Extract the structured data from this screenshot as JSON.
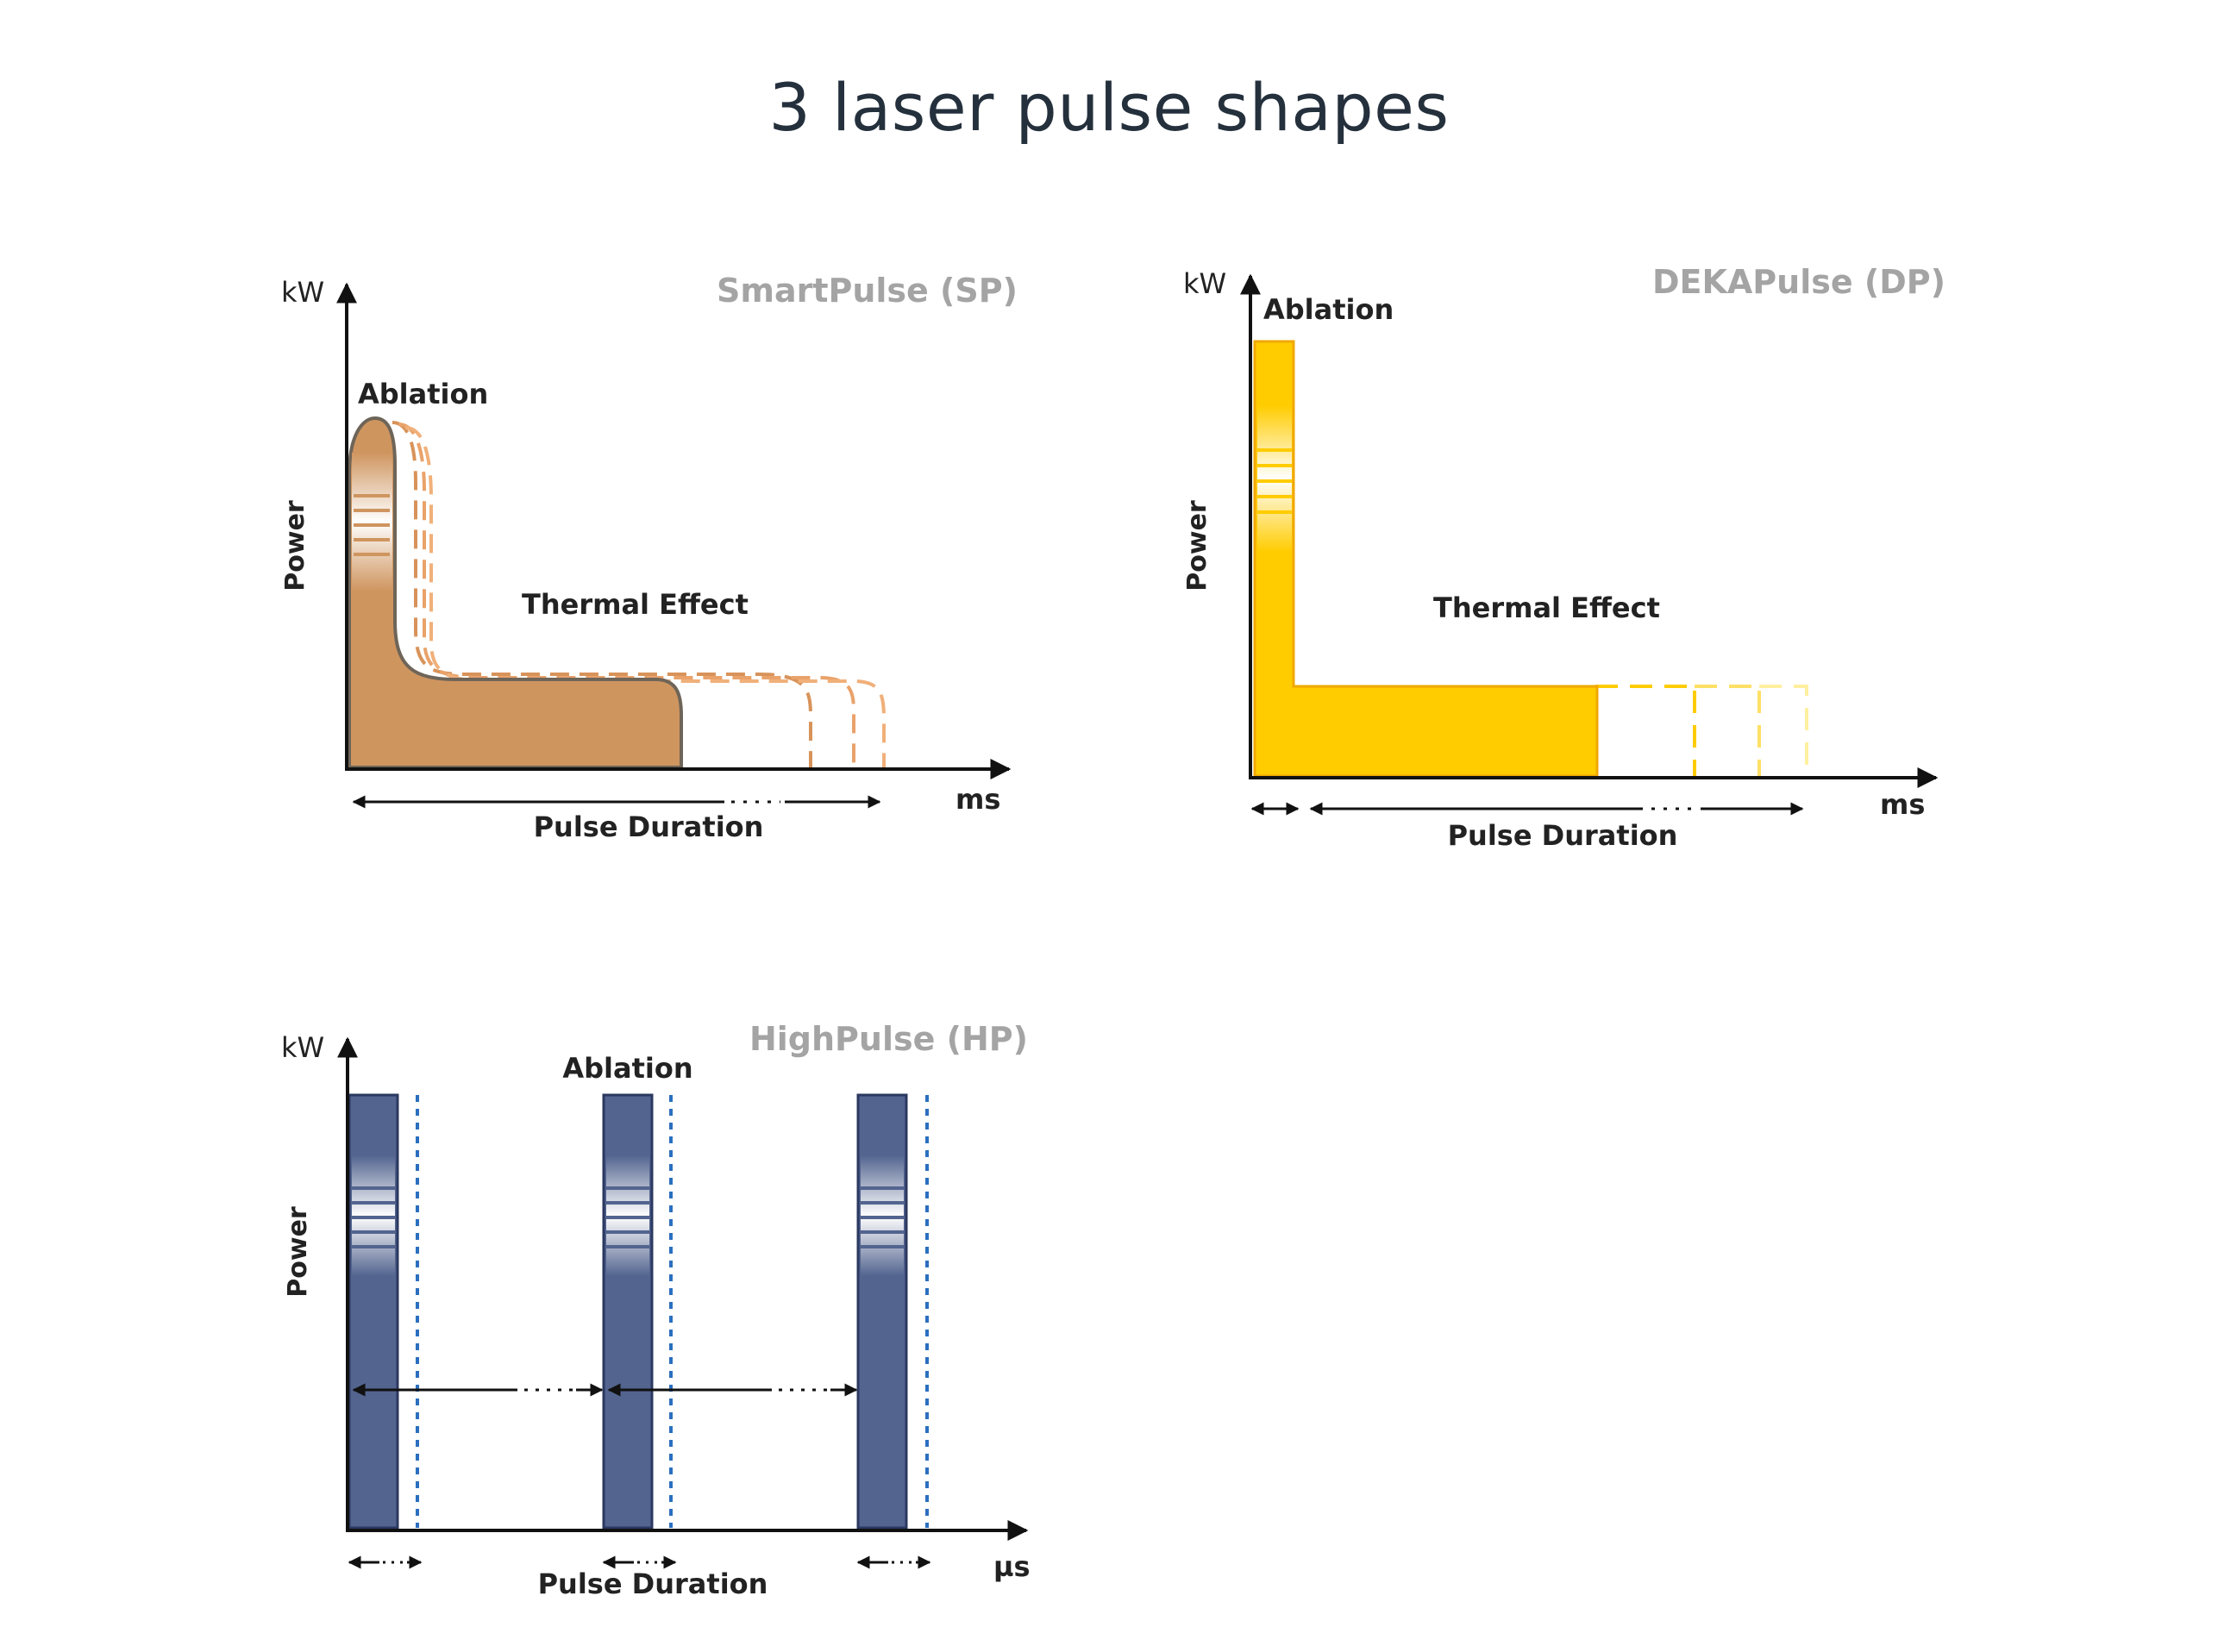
{
  "page": {
    "title": "3 laser pulse shapes"
  },
  "colors": {
    "smartpulse_fill": "#cf955f",
    "smartpulse_stroke": "#6e6558",
    "dekapulse_fill": "#ffcc00",
    "dekapulse_stroke": "#f0a800",
    "highpulse_fill": "#53648f",
    "highpulse_stroke": "#2b3860",
    "highpulse_dotted": "#2b6fbf",
    "axis": "#111111",
    "diagram_title": "#a4a4a4"
  },
  "diagrams": {
    "smartpulse": {
      "title": "SmartPulse (SP)",
      "y_unit": "kW",
      "y_label": "Power",
      "x_unit": "ms",
      "peak_label": "Ablation",
      "tail_label": "Thermal Effect",
      "duration_label": "Pulse Duration"
    },
    "dekapulse": {
      "title": "DEKAPulse (DP)",
      "y_unit": "kW",
      "y_label": "Power",
      "x_unit": "ms",
      "peak_label": "Ablation",
      "tail_label": "Thermal Effect",
      "duration_label": "Pulse Duration"
    },
    "highpulse": {
      "title": "HighPulse (HP)",
      "y_unit": "kW",
      "y_label": "Power",
      "x_unit": "µs",
      "peak_label": "Ablation",
      "duration_label": "Pulse Duration"
    }
  }
}
